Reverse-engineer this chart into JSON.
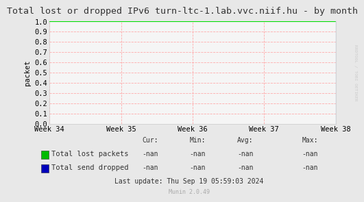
{
  "title": "Total lost or dropped IPv6 turn-ltc-1.lab.vvc.niif.hu - by month",
  "ylabel": "packet",
  "ylim": [
    0.0,
    1.0
  ],
  "yticks": [
    0.0,
    0.1,
    0.2,
    0.3,
    0.4,
    0.5,
    0.6,
    0.7,
    0.8,
    0.9,
    1.0
  ],
  "xtick_labels": [
    "Week 34",
    "Week 35",
    "Week 36",
    "Week 37",
    "Week 38"
  ],
  "bg_color": "#e8e8e8",
  "plot_bg_color": "#f5f5f5",
  "grid_color": "#ffaaaa",
  "top_line_color": "#00dd00",
  "right_line_color": "#aaccee",
  "legend_items": [
    {
      "label": "Total lost packets",
      "color": "#00bb00"
    },
    {
      "label": "Total send dropped",
      "color": "#0000bb"
    }
  ],
  "stats_headers": [
    "Cur:",
    "Min:",
    "Avg:",
    "Max:"
  ],
  "stats_values": [
    [
      "-nan",
      "-nan",
      "-nan",
      "-nan"
    ],
    [
      "-nan",
      "-nan",
      "-nan",
      "-nan"
    ]
  ],
  "footer": "Last update: Thu Sep 19 05:59:03 2024",
  "munin_version": "Munin 2.0.49",
  "watermark": "RRDTOOL / TOBI OETIKER",
  "title_fontsize": 9.5,
  "axis_fontsize": 7.5,
  "legend_fontsize": 7.5,
  "stats_fontsize": 7.0
}
